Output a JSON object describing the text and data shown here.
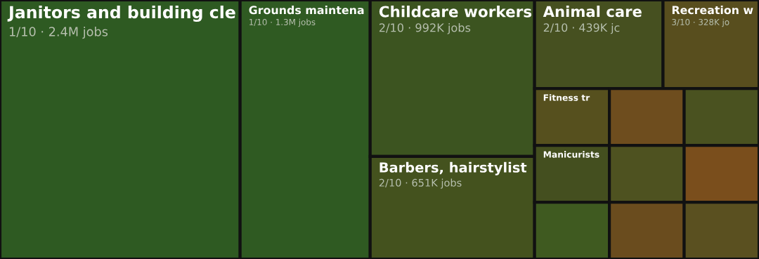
{
  "chart_data": {
    "type": "other",
    "categories": [
      "Janitors and building cle",
      "Grounds maintena",
      "Childcare workers",
      "Barbers, hairstylist",
      "Animal care",
      "Recreation w",
      "Fitness tr",
      "Manicurists",
      null,
      null,
      null,
      null,
      null,
      null,
      null
    ],
    "values": [
      2400000,
      1300000,
      992000,
      651000,
      439000,
      328000,
      null,
      null,
      null,
      null,
      null,
      null,
      null,
      null,
      null
    ],
    "value_labels": [
      "1/10 · 2.4M jobs",
      "1/10 · 1.3M jobs",
      "2/10 · 992K jobs",
      "2/10 · 651K jobs",
      "2/10 · 439K jc",
      "3/10 · 328K jo",
      null,
      null,
      null,
      null,
      null,
      null,
      null,
      null,
      null
    ],
    "colors": [
      "#2e5a22",
      "#2f5a22",
      "#3c5420",
      "#44521e",
      "#465020",
      "#584e1e",
      "#56501e",
      "#444f1f",
      "#3f5a20",
      "#6e4d1e",
      "#4a5220",
      "#4e5220",
      "#6a4c1e",
      "#7a4e1c",
      "#5a5020"
    ]
  }
}
